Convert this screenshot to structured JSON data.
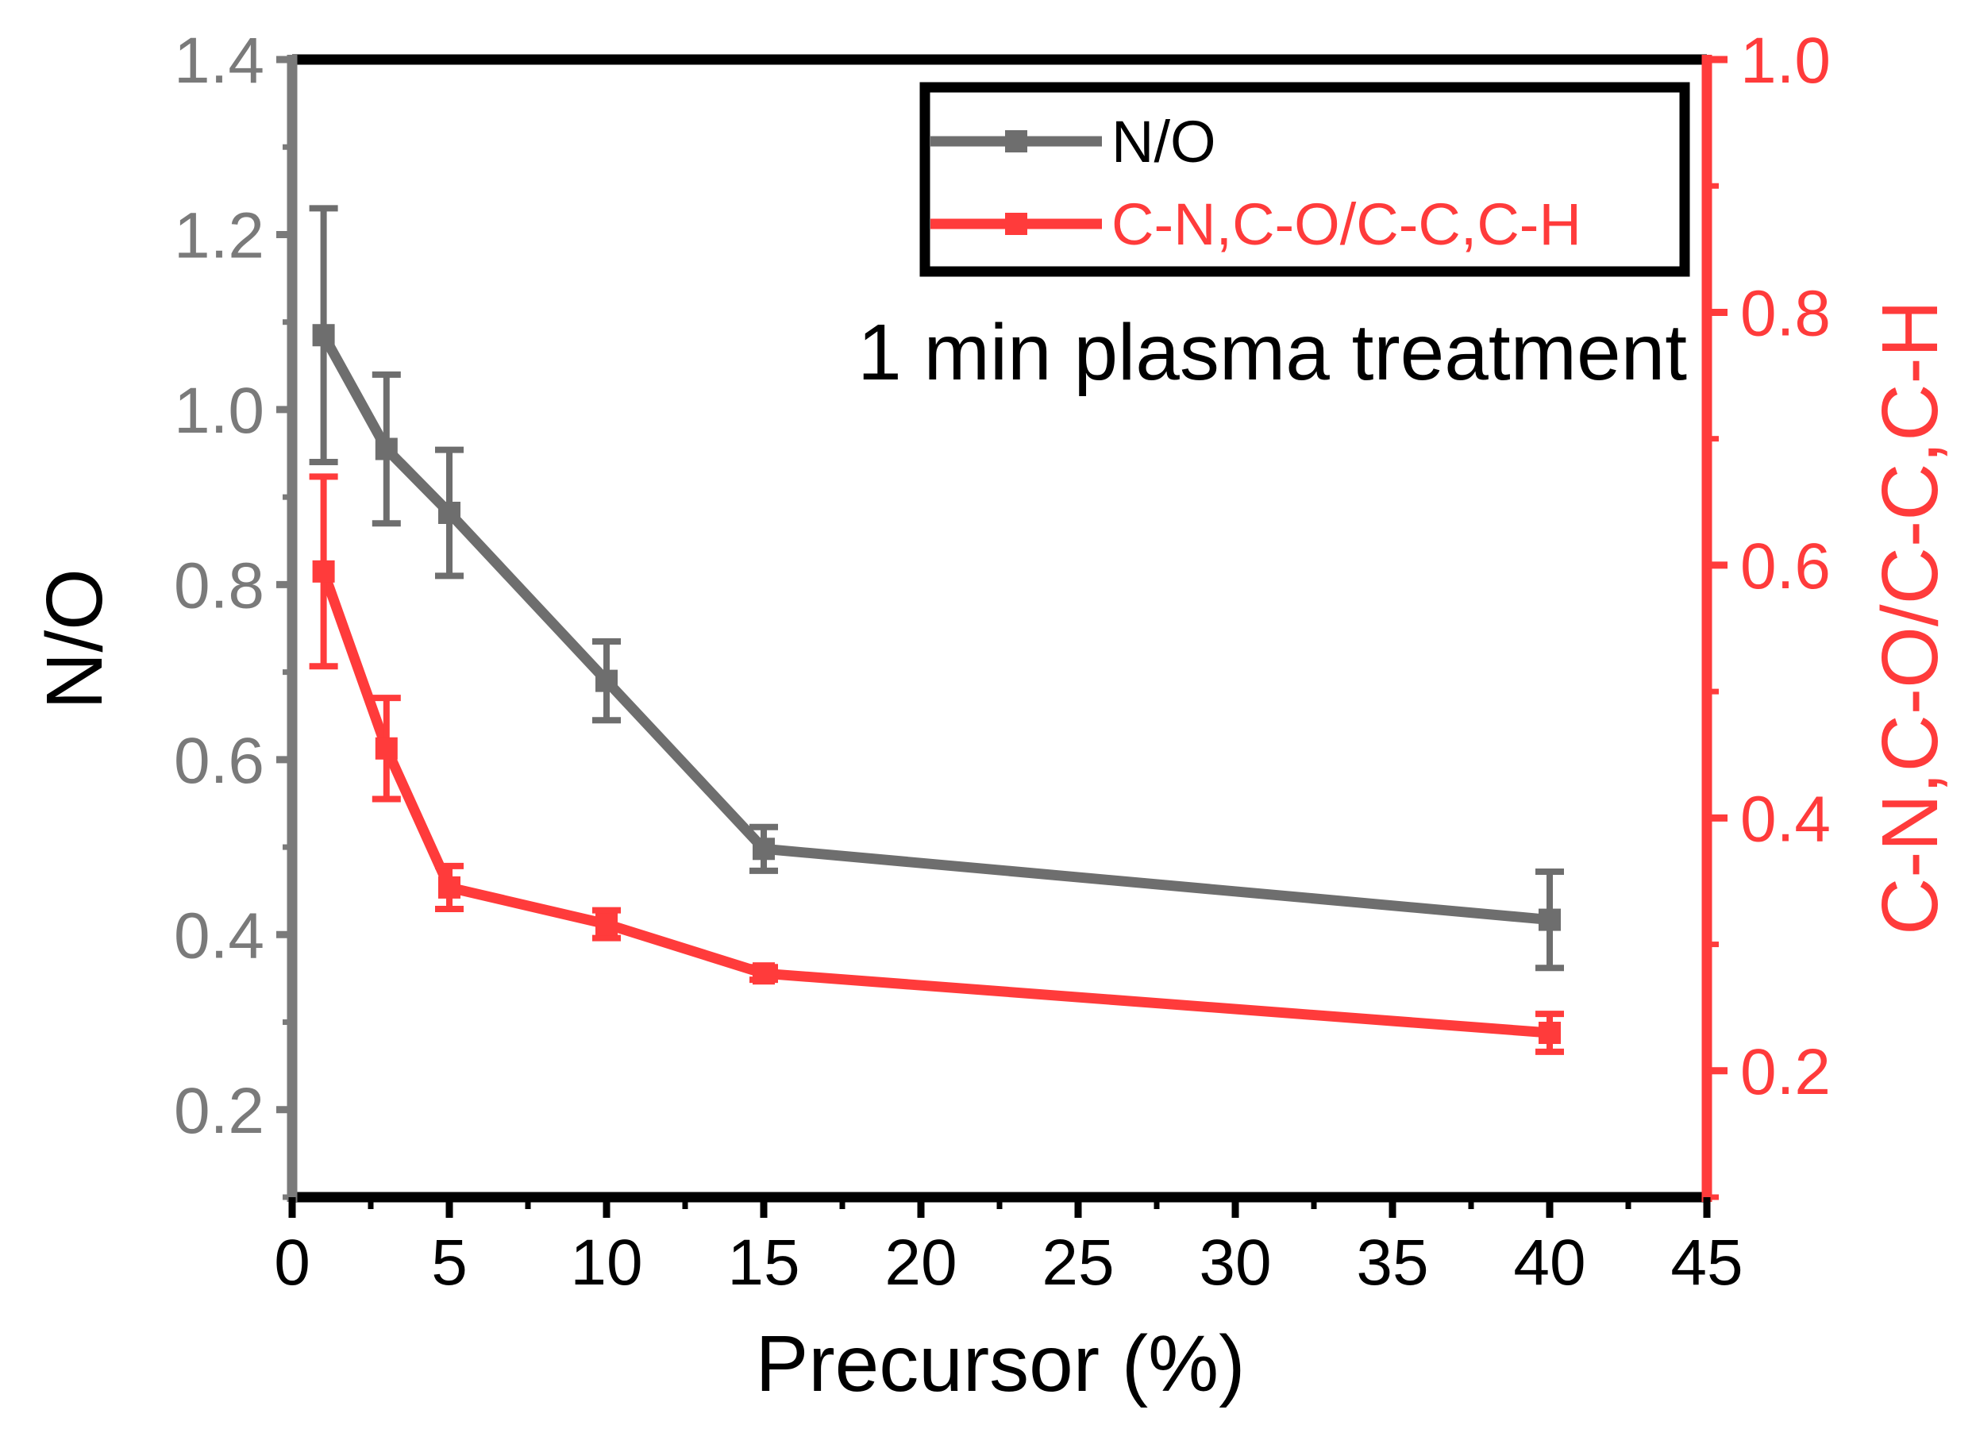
{
  "chart_data": {
    "type": "line",
    "title": "",
    "annotation": "1 min plasma treatment",
    "xlabel": "Precursor (%)",
    "ylabel_left": "N/O",
    "ylabel_right": "C-N,C-O/C-C,C-H",
    "xlim": [
      0,
      45
    ],
    "ylim_left": [
      0.1,
      1.4
    ],
    "ylim_right": [
      0.1,
      1.0
    ],
    "x_ticks": [
      0,
      5,
      10,
      15,
      20,
      25,
      30,
      35,
      40,
      45
    ],
    "x_tick_labels": [
      "0",
      "5",
      "10",
      "15",
      "20",
      "25",
      "30",
      "35",
      "40",
      "45"
    ],
    "y_left_ticks": [
      0.2,
      0.4,
      0.6,
      0.8,
      1.0,
      1.2,
      1.4
    ],
    "y_left_tick_labels": [
      "0.2",
      "0.4",
      "0.6",
      "0.8",
      "1.0",
      "1.2",
      "1.4"
    ],
    "y_right_ticks": [
      0.2,
      0.4,
      0.6,
      0.8,
      1.0
    ],
    "y_right_tick_labels": [
      "0.2",
      "0.4",
      "0.6",
      "0.8",
      "1.0"
    ],
    "legend_position": "top-right",
    "colors": {
      "left_axis": "#7a7a7a",
      "right_axis": "#ff3b3b",
      "frame": "#000000"
    },
    "series": [
      {
        "name": "N/O",
        "axis": "left",
        "color": "#6e6e6e",
        "x": [
          1,
          3,
          5,
          10,
          15,
          40
        ],
        "y": [
          1.085,
          0.955,
          0.882,
          0.69,
          0.498,
          0.417
        ],
        "err": [
          0.145,
          0.085,
          0.072,
          0.045,
          0.025,
          0.055
        ]
      },
      {
        "name": "C-N,C-O/C-C,C-H",
        "axis": "right",
        "color": "#ff3b3b",
        "x": [
          1,
          3,
          5,
          10,
          15,
          40
        ],
        "y": [
          0.595,
          0.455,
          0.345,
          0.316,
          0.277,
          0.23
        ],
        "err": [
          0.075,
          0.04,
          0.017,
          0.011,
          0.005,
          0.015
        ]
      }
    ]
  }
}
